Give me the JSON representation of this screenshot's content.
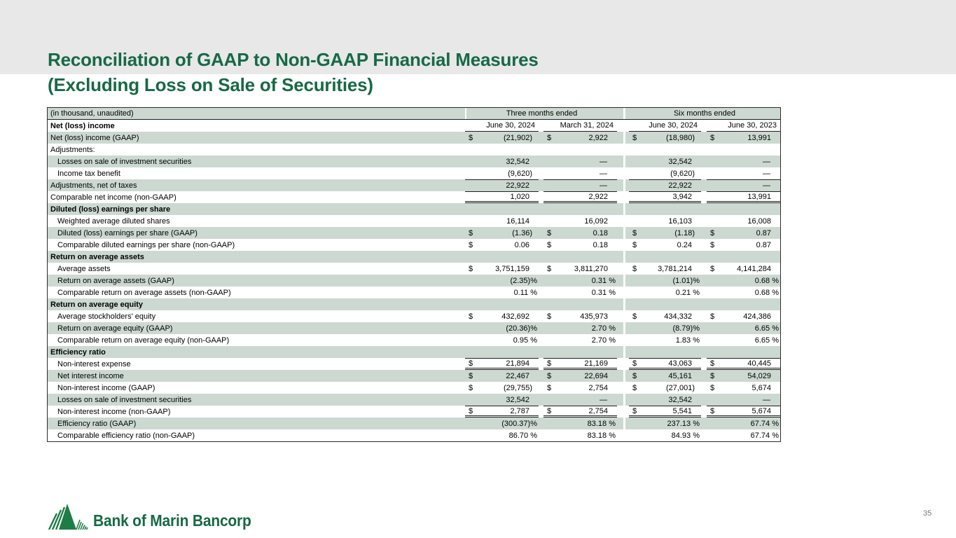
{
  "slide": {
    "title_line1": "Reconciliation of GAAP to Non-GAAP Financial Measures",
    "title_line2": "(Excluding Loss on Sale of Securities)",
    "page_number": "35",
    "logo_text": "Bank of Marin Bancorp"
  },
  "colors": {
    "title_green": "#176946",
    "row_shade_green": "#ccd9d1",
    "top_band_gray": "#e8e8e8",
    "border_dark": "#1f1f1f"
  },
  "table": {
    "unit_note": "(in thousand, unaudited)",
    "group_headers": [
      "Three months ended",
      "Six months ended"
    ],
    "section_header": "Net (loss) income",
    "column_headers": [
      "June 30, 2024",
      "March 31, 2024",
      "June 30, 2024",
      "June 30, 2023"
    ],
    "rows": [
      {
        "label": "Net (loss) income (GAAP)",
        "indent": false,
        "bold": false,
        "shade": true,
        "dollar": true,
        "borders": "",
        "values": [
          "(21,902)",
          "2,922",
          "(18,980)",
          "13,991"
        ]
      },
      {
        "label": "Adjustments:",
        "indent": false,
        "bold": false,
        "shade": false,
        "dollar": false,
        "borders": "",
        "values": [
          "",
          "",
          "",
          ""
        ]
      },
      {
        "label": "Losses on sale of investment securities",
        "indent": true,
        "bold": false,
        "shade": true,
        "dollar": false,
        "borders": "",
        "values": [
          "32,542",
          "—",
          "32,542",
          "—"
        ]
      },
      {
        "label": "Income tax benefit",
        "indent": true,
        "bold": false,
        "shade": false,
        "dollar": false,
        "borders": "",
        "values": [
          "(9,620)",
          "—",
          "(9,620)",
          "—"
        ]
      },
      {
        "label": "Adjustments, net of taxes",
        "indent": false,
        "bold": false,
        "shade": true,
        "dollar": false,
        "borders": "bt",
        "values": [
          "22,922",
          "—",
          "22,922",
          "—"
        ]
      },
      {
        "label": "Comparable net income (non-GAAP)",
        "indent": false,
        "bold": false,
        "shade": false,
        "dollar": false,
        "borders": "bt bd",
        "values": [
          "1,020",
          "2,922",
          "3,942",
          "13,991"
        ]
      },
      {
        "label": "Diluted (loss) earnings per share",
        "indent": false,
        "bold": true,
        "shade": true,
        "dollar": false,
        "borders": "",
        "values": [
          "",
          "",
          "",
          ""
        ]
      },
      {
        "label": "Weighted average diluted shares",
        "indent": true,
        "bold": false,
        "shade": false,
        "dollar": false,
        "borders": "",
        "values": [
          "16,114",
          "16,092",
          "16,103",
          "16,008"
        ]
      },
      {
        "label": "Diluted (loss) earnings per share (GAAP)",
        "indent": true,
        "bold": false,
        "shade": true,
        "dollar": true,
        "borders": "",
        "values": [
          "(1.36)",
          "0.18",
          "(1.18)",
          "0.87"
        ]
      },
      {
        "label": "Comparable diluted earnings per share (non-GAAP)",
        "indent": true,
        "bold": false,
        "shade": false,
        "dollar": true,
        "borders": "",
        "values": [
          "0.06",
          "0.18",
          "0.24",
          "0.87"
        ]
      },
      {
        "label": "Return on average assets",
        "indent": false,
        "bold": true,
        "shade": true,
        "dollar": false,
        "borders": "",
        "values": [
          "",
          "",
          "",
          ""
        ]
      },
      {
        "label": "Average assets",
        "indent": true,
        "bold": false,
        "shade": false,
        "dollar": true,
        "borders": "",
        "values": [
          "3,751,159",
          "3,811,270",
          "3,781,214",
          "4,141,284"
        ]
      },
      {
        "label": "Return on average assets (GAAP)",
        "indent": true,
        "bold": false,
        "shade": true,
        "dollar": false,
        "borders": "",
        "values": [
          "(2.35)%",
          "0.31 %",
          "(1.01)%",
          "0.68 %"
        ]
      },
      {
        "label": "Comparable return on average assets (non-GAAP)",
        "indent": true,
        "bold": false,
        "shade": false,
        "dollar": false,
        "borders": "",
        "values": [
          "0.11 %",
          "0.31 %",
          "0.21 %",
          "0.68 %"
        ]
      },
      {
        "label": "Return on average equity",
        "indent": false,
        "bold": true,
        "shade": true,
        "dollar": false,
        "borders": "",
        "values": [
          "",
          "",
          "",
          ""
        ]
      },
      {
        "label": "Average stockholders' equity",
        "indent": true,
        "bold": false,
        "shade": false,
        "dollar": true,
        "borders": "",
        "values": [
          "432,692",
          "435,973",
          "434,332",
          "424,386"
        ]
      },
      {
        "label": "Return on average equity (GAAP)",
        "indent": true,
        "bold": false,
        "shade": true,
        "dollar": false,
        "borders": "",
        "values": [
          "(20.36)%",
          "2.70 %",
          "(8.79)%",
          "6.65 %"
        ]
      },
      {
        "label": "Comparable return on average equity (non-GAAP)",
        "indent": true,
        "bold": false,
        "shade": false,
        "dollar": false,
        "borders": "",
        "values": [
          "0.95 %",
          "2.70 %",
          "1.83 %",
          "6.65 %"
        ]
      },
      {
        "label": "Efficiency ratio",
        "indent": false,
        "bold": true,
        "shade": true,
        "dollar": false,
        "borders": "",
        "values": [
          "",
          "",
          "",
          ""
        ]
      },
      {
        "label": "Non-interest expense",
        "indent": true,
        "bold": false,
        "shade": false,
        "dollar": true,
        "borders": "bt bd",
        "values": [
          "21,894",
          "21,169",
          "43,063",
          "40,445"
        ]
      },
      {
        "label": "Net interest income",
        "indent": true,
        "bold": false,
        "shade": true,
        "dollar": true,
        "borders": "",
        "values": [
          "22,467",
          "22,694",
          "45,161",
          "54,029"
        ]
      },
      {
        "label": "Non-interest income (GAAP)",
        "indent": true,
        "bold": false,
        "shade": false,
        "dollar": true,
        "borders": "",
        "values": [
          "(29,755)",
          "2,754",
          "(27,001)",
          "5,674"
        ]
      },
      {
        "label": "Losses on sale of investment securities",
        "indent": true,
        "bold": false,
        "shade": true,
        "dollar": false,
        "borders": "",
        "values": [
          "32,542",
          "—",
          "32,542",
          "—"
        ]
      },
      {
        "label": "Non-interest income (non-GAAP)",
        "indent": true,
        "bold": false,
        "shade": false,
        "dollar": true,
        "borders": "bt bd",
        "values": [
          "2,787",
          "2,754",
          "5,541",
          "5,674"
        ]
      },
      {
        "label": "Efficiency ratio (GAAP)",
        "indent": true,
        "bold": false,
        "shade": true,
        "dollar": false,
        "borders": "",
        "values": [
          "(300.37)%",
          "83.18 %",
          "237.13 %",
          "67.74 %"
        ]
      },
      {
        "label": "Comparable efficiency ratio (non-GAAP)",
        "indent": true,
        "bold": false,
        "shade": false,
        "dollar": false,
        "borders": "",
        "values": [
          "86.70 %",
          "83.18 %",
          "84.93 %",
          "67.74 %"
        ]
      }
    ]
  }
}
